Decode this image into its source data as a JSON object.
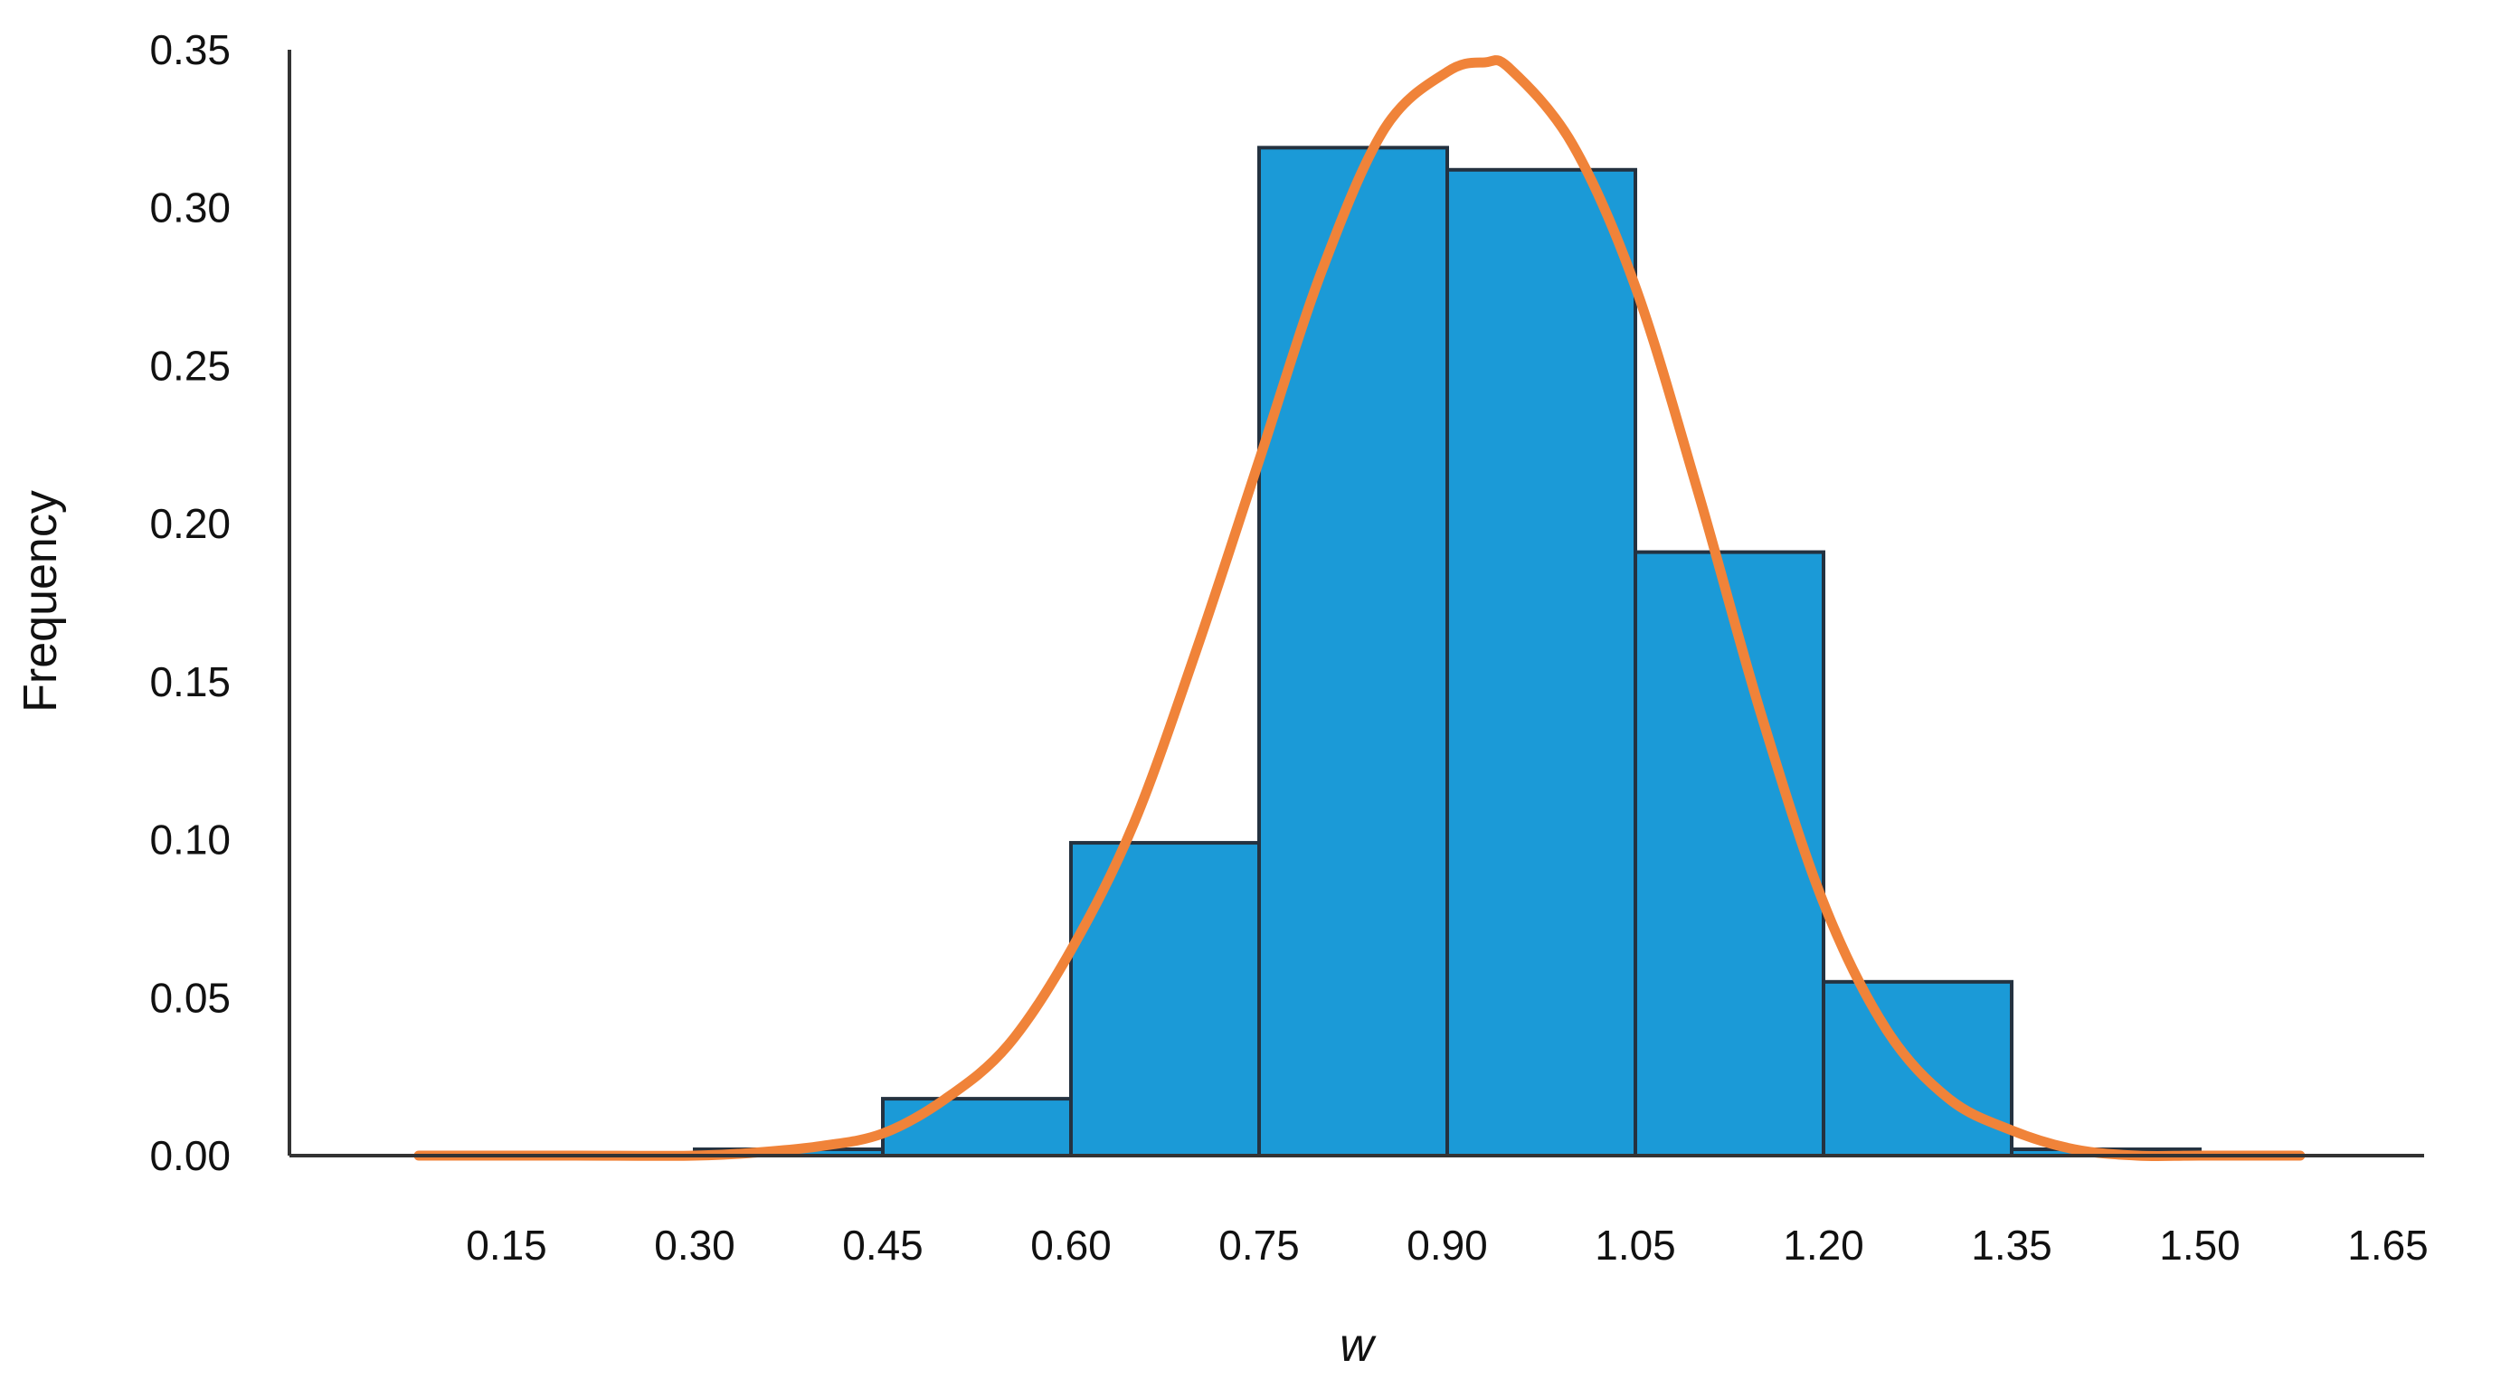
{
  "chart_data": {
    "type": "bar",
    "xlabel": "w",
    "ylabel": "Frequency",
    "ylim": [
      0,
      0.35
    ],
    "xlim": [
      0.0,
      1.7
    ],
    "grid": false,
    "legend": "none",
    "y_ticks": [
      "0.00",
      "0.05",
      "0.10",
      "0.15",
      "0.20",
      "0.25",
      "0.30",
      "0.35"
    ],
    "x_ticks": [
      "0.15",
      "0.30",
      "0.45",
      "0.60",
      "0.75",
      "0.90",
      "1.05",
      "1.20",
      "1.35",
      "1.50",
      "1.65"
    ],
    "x_tick_values": [
      0.15,
      0.3,
      0.45,
      0.6,
      0.75,
      0.9,
      1.05,
      1.2,
      1.35,
      1.5,
      1.65
    ],
    "bars": [
      {
        "x0": 0.3,
        "x1": 0.45,
        "value": 0.002
      },
      {
        "x0": 0.45,
        "x1": 0.6,
        "value": 0.018
      },
      {
        "x0": 0.6,
        "x1": 0.75,
        "value": 0.099
      },
      {
        "x0": 0.75,
        "x1": 0.9,
        "value": 0.319
      },
      {
        "x0": 0.9,
        "x1": 1.05,
        "value": 0.312
      },
      {
        "x0": 1.05,
        "x1": 1.2,
        "value": 0.191
      },
      {
        "x0": 1.2,
        "x1": 1.35,
        "value": 0.055
      },
      {
        "x0": 1.35,
        "x1": 1.5,
        "value": 0.002
      }
    ],
    "curve": {
      "x": [
        0.08,
        0.2,
        0.3,
        0.35,
        0.4,
        0.45,
        0.5,
        0.55,
        0.6,
        0.65,
        0.7,
        0.75,
        0.8,
        0.85,
        0.9,
        0.93,
        0.95,
        1.0,
        1.05,
        1.1,
        1.15,
        1.2,
        1.25,
        1.3,
        1.35,
        1.4,
        1.45,
        1.5,
        1.58
      ],
      "y": [
        0.0,
        0.0,
        0.0,
        0.001,
        0.003,
        0.007,
        0.018,
        0.035,
        0.065,
        0.105,
        0.16,
        0.22,
        0.28,
        0.325,
        0.343,
        0.346,
        0.344,
        0.32,
        0.275,
        0.21,
        0.14,
        0.08,
        0.04,
        0.018,
        0.008,
        0.002,
        0.0,
        0.0,
        0.0
      ]
    },
    "colors": {
      "bar_fill": "#1b9ad7",
      "bar_stroke": "#243240",
      "curve": "#f08339",
      "axis": "#333333"
    }
  }
}
